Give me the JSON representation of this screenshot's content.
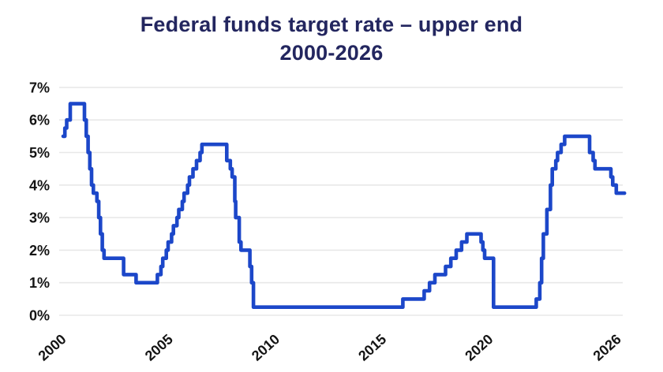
{
  "chart_data": {
    "type": "line",
    "title": "Federal funds target rate – upper end",
    "subtitle": "2000-2026",
    "xlabel": "",
    "ylabel": "",
    "grid": "horizontal",
    "legend": "none",
    "interpolation": "step-after",
    "xlim": [
      2000,
      2026.3
    ],
    "ylim": [
      0,
      7
    ],
    "x_ticks": [
      {
        "label": "2000",
        "value": 2000
      },
      {
        "label": "2005",
        "value": 2005
      },
      {
        "label": "2010",
        "value": 2010
      },
      {
        "label": "2015",
        "value": 2015
      },
      {
        "label": "2020",
        "value": 2020
      },
      {
        "label": "2026",
        "value": 2026
      }
    ],
    "y_ticks": [
      {
        "label": "0%",
        "value": 0
      },
      {
        "label": "1%",
        "value": 1
      },
      {
        "label": "2%",
        "value": 2
      },
      {
        "label": "3%",
        "value": 3
      },
      {
        "label": "4%",
        "value": 4
      },
      {
        "label": "5%",
        "value": 5
      },
      {
        "label": "6%",
        "value": 6
      },
      {
        "label": "7%",
        "value": 7
      }
    ],
    "series": [
      {
        "name": "Federal funds target rate (upper end), %",
        "points": [
          [
            2000.0,
            5.5
          ],
          [
            2000.083,
            5.75
          ],
          [
            2000.167,
            6.0
          ],
          [
            2000.333,
            6.5
          ],
          [
            2001.0,
            6.0
          ],
          [
            2001.083,
            5.5
          ],
          [
            2001.167,
            5.0
          ],
          [
            2001.25,
            4.5
          ],
          [
            2001.333,
            4.0
          ],
          [
            2001.417,
            3.75
          ],
          [
            2001.583,
            3.5
          ],
          [
            2001.667,
            3.0
          ],
          [
            2001.75,
            2.5
          ],
          [
            2001.833,
            2.0
          ],
          [
            2001.917,
            1.75
          ],
          [
            2002.833,
            1.25
          ],
          [
            2003.417,
            1.0
          ],
          [
            2004.417,
            1.25
          ],
          [
            2004.583,
            1.5
          ],
          [
            2004.667,
            1.75
          ],
          [
            2004.833,
            2.0
          ],
          [
            2004.917,
            2.25
          ],
          [
            2005.083,
            2.5
          ],
          [
            2005.167,
            2.75
          ],
          [
            2005.333,
            3.0
          ],
          [
            2005.417,
            3.25
          ],
          [
            2005.583,
            3.5
          ],
          [
            2005.667,
            3.75
          ],
          [
            2005.833,
            4.0
          ],
          [
            2005.917,
            4.25
          ],
          [
            2006.083,
            4.5
          ],
          [
            2006.25,
            4.75
          ],
          [
            2006.417,
            5.0
          ],
          [
            2006.5,
            5.25
          ],
          [
            2007.667,
            4.75
          ],
          [
            2007.833,
            4.5
          ],
          [
            2007.917,
            4.25
          ],
          [
            2008.042,
            3.5
          ],
          [
            2008.083,
            3.0
          ],
          [
            2008.25,
            2.25
          ],
          [
            2008.333,
            2.0
          ],
          [
            2008.75,
            1.5
          ],
          [
            2008.833,
            1.0
          ],
          [
            2008.917,
            0.25
          ],
          [
            2015.917,
            0.5
          ],
          [
            2016.917,
            0.75
          ],
          [
            2017.167,
            1.0
          ],
          [
            2017.417,
            1.25
          ],
          [
            2017.917,
            1.5
          ],
          [
            2018.167,
            1.75
          ],
          [
            2018.417,
            2.0
          ],
          [
            2018.667,
            2.25
          ],
          [
            2018.917,
            2.5
          ],
          [
            2019.583,
            2.25
          ],
          [
            2019.667,
            2.0
          ],
          [
            2019.75,
            1.75
          ],
          [
            2020.167,
            0.25
          ],
          [
            2022.167,
            0.5
          ],
          [
            2022.333,
            1.0
          ],
          [
            2022.417,
            1.75
          ],
          [
            2022.5,
            2.5
          ],
          [
            2022.667,
            3.25
          ],
          [
            2022.833,
            4.0
          ],
          [
            2022.917,
            4.5
          ],
          [
            2023.083,
            4.75
          ],
          [
            2023.167,
            5.0
          ],
          [
            2023.333,
            5.25
          ],
          [
            2023.5,
            5.5
          ],
          [
            2024.667,
            5.0
          ],
          [
            2024.833,
            4.75
          ],
          [
            2024.917,
            4.5
          ],
          [
            2025.667,
            4.25
          ],
          [
            2025.75,
            4.0
          ],
          [
            2025.917,
            3.75
          ],
          [
            2026.3,
            3.75
          ]
        ]
      }
    ],
    "colors": {
      "line": "#1c47c9",
      "title": "#23265f",
      "axis_text": "#141414",
      "grid": "#e8e8e8",
      "background": "#ffffff"
    }
  }
}
